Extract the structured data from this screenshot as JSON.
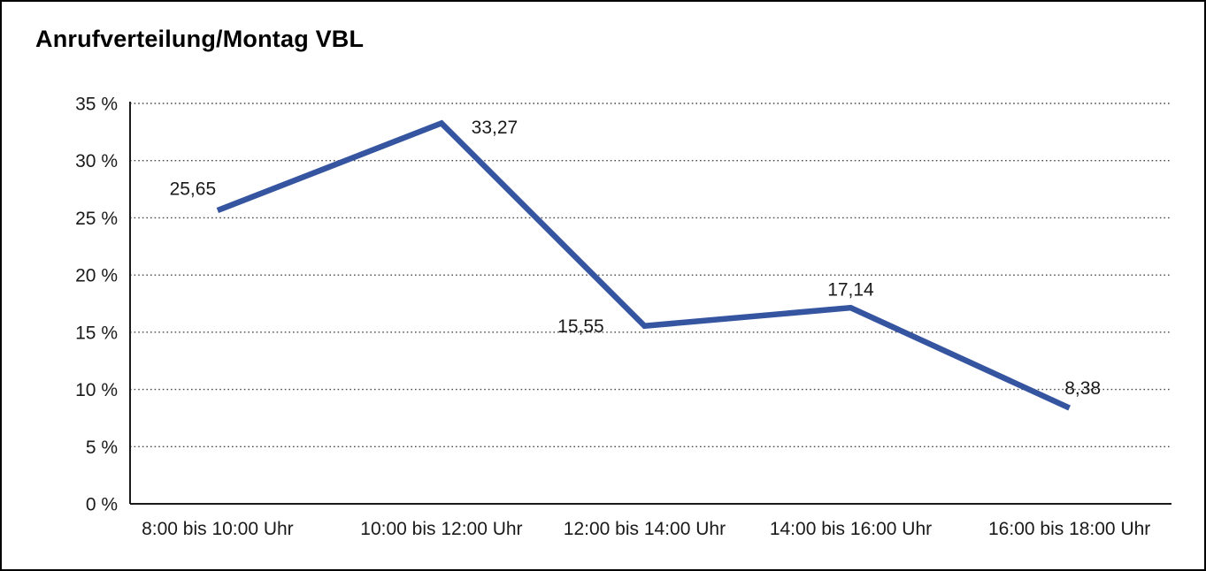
{
  "page": {
    "title": "Anrufverteilung/Montag VBL"
  },
  "chart_data": {
    "type": "line",
    "title": "Anrufverteilung/Montag VBL",
    "categories": [
      "8:00 bis 10:00 Uhr",
      "10:00 bis 12:00 Uhr",
      "12:00 bis 14:00 Uhr",
      "14:00 bis 16:00 Uhr",
      "16:00 bis 18:00 Uhr"
    ],
    "values": [
      25.65,
      33.27,
      15.55,
      17.14,
      8.38
    ],
    "data_labels": [
      "25,65",
      "33,27",
      "15,55",
      "17,14",
      "8,38"
    ],
    "xlabel": "",
    "ylabel": "",
    "ylim": [
      0,
      35
    ],
    "y_tick_step": 5,
    "y_tick_labels": [
      "0 %",
      "5 %",
      "10 %",
      "15 %",
      "20 %",
      "25 %",
      "30 %",
      "35 %"
    ],
    "grid": "horizontal-dotted",
    "legend_position": "none",
    "line_color": "#3655a0",
    "grid_color": "#4a4a4a",
    "axis_color": "#1a1a1a",
    "text_color": "#1a1a1a"
  }
}
